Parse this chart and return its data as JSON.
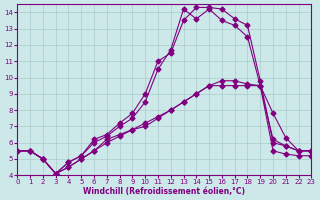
{
  "xlabel": "Windchill (Refroidissement éolien,°C)",
  "ylabel": "",
  "background_color": "#cce8e8",
  "line_color": "#800080",
  "grid_color": "#aacccc",
  "xmin": 0,
  "xmax": 23,
  "ymin": 4,
  "ymax": 14.5,
  "yticks": [
    4,
    5,
    6,
    7,
    8,
    9,
    10,
    11,
    12,
    13,
    14
  ],
  "lines": [
    {
      "x": [
        0,
        1,
        2,
        3,
        4,
        5,
        6,
        7,
        8,
        9,
        10,
        11,
        12,
        13,
        14,
        15,
        16,
        17,
        18,
        19,
        20,
        21,
        22,
        23
      ],
      "y": [
        5.5,
        5.5,
        5.0,
        4.1,
        4.5,
        5.0,
        5.5,
        6.2,
        6.5,
        6.8,
        7.0,
        7.5,
        8.0,
        8.5,
        9.0,
        9.5,
        9.5,
        9.5,
        9.5,
        9.5,
        6.2,
        5.8,
        5.5,
        5.5
      ]
    },
    {
      "x": [
        0,
        1,
        2,
        3,
        4,
        5,
        6,
        7,
        8,
        9,
        10,
        11,
        12,
        13,
        14,
        15,
        16,
        17,
        18,
        19,
        20,
        21,
        22,
        23
      ],
      "y": [
        5.5,
        5.5,
        5.0,
        4.1,
        4.8,
        5.2,
        6.0,
        6.4,
        7.0,
        7.5,
        8.5,
        10.5,
        11.7,
        14.2,
        13.6,
        14.2,
        13.5,
        13.2,
        12.5,
        9.5,
        7.8,
        6.3,
        5.5,
        5.5
      ]
    },
    {
      "x": [
        0,
        1,
        2,
        3,
        4,
        5,
        6,
        7,
        8,
        9,
        10,
        11,
        12,
        13,
        14,
        15,
        16,
        17,
        18,
        19,
        20,
        21,
        22,
        23
      ],
      "y": [
        5.5,
        5.5,
        5.0,
        4.1,
        4.8,
        5.2,
        6.2,
        6.5,
        7.2,
        7.8,
        9.0,
        11.0,
        11.5,
        13.5,
        14.3,
        14.3,
        14.2,
        13.6,
        13.2,
        9.8,
        6.0,
        5.8,
        5.5,
        5.5
      ]
    },
    {
      "x": [
        0,
        1,
        2,
        3,
        4,
        5,
        6,
        7,
        8,
        9,
        10,
        11,
        12,
        13,
        14,
        15,
        16,
        17,
        18,
        19,
        20,
        21,
        22,
        23
      ],
      "y": [
        5.5,
        5.5,
        5.0,
        4.1,
        4.5,
        5.0,
        5.5,
        6.0,
        6.4,
        6.8,
        7.2,
        7.6,
        8.0,
        8.5,
        9.0,
        9.5,
        9.8,
        9.8,
        9.6,
        9.5,
        5.5,
        5.3,
        5.2,
        5.2
      ]
    }
  ]
}
